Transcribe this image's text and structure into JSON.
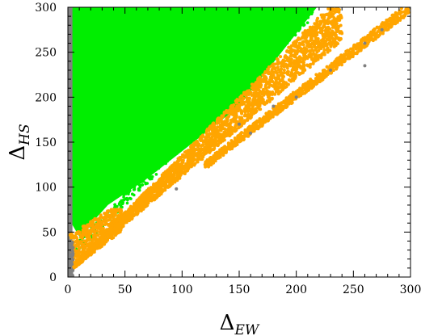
{
  "chart_data": {
    "type": "scatter",
    "xlabel": "Δ",
    "xlabel_sub": "EW",
    "ylabel": "Δ",
    "ylabel_sub": "HS",
    "xlim": [
      0,
      300
    ],
    "ylim": [
      0,
      300
    ],
    "xticks": [
      "0",
      "50",
      "100",
      "150",
      "200",
      "250",
      "300"
    ],
    "yticks": [
      "0",
      "50",
      "100",
      "150",
      "200",
      "250",
      "300"
    ],
    "grid": false,
    "series": [
      {
        "color": "#00ee00",
        "description_region": "filled region bounded by",
        "polygon": [
          [
            3,
            60
          ],
          [
            3,
            300
          ],
          [
            218,
            300
          ],
          [
            150,
            190
          ],
          [
            105,
            145
          ],
          [
            70,
            110
          ],
          [
            35,
            80
          ],
          [
            10,
            45
          ]
        ]
      },
      {
        "color": "#ffa500",
        "bands": [
          {
            "x0": 2,
            "x1": 240,
            "lower_slope": 1.08,
            "upper_slope": 1.28,
            "lower_offset": 4,
            "upper_offset": 8
          },
          {
            "x0": 120,
            "x1": 300,
            "lower_slope": 0.97,
            "upper_slope": 0.99,
            "lower_offset": 3,
            "upper_offset": 10
          }
        ]
      },
      {
        "color": "#808080",
        "strip": {
          "x0": 0,
          "x1": 4,
          "y0": 0,
          "y1": 300
        },
        "scattered": [
          [
            95,
            98
          ],
          [
            150,
            170
          ],
          [
            230,
            230
          ],
          [
            260,
            260
          ],
          [
            275,
            275
          ],
          [
            260,
            235
          ],
          [
            300,
            300
          ],
          [
            200,
            200
          ],
          [
            180,
            190
          ],
          [
            160,
            160
          ],
          [
            310,
            300
          ]
        ]
      }
    ]
  }
}
